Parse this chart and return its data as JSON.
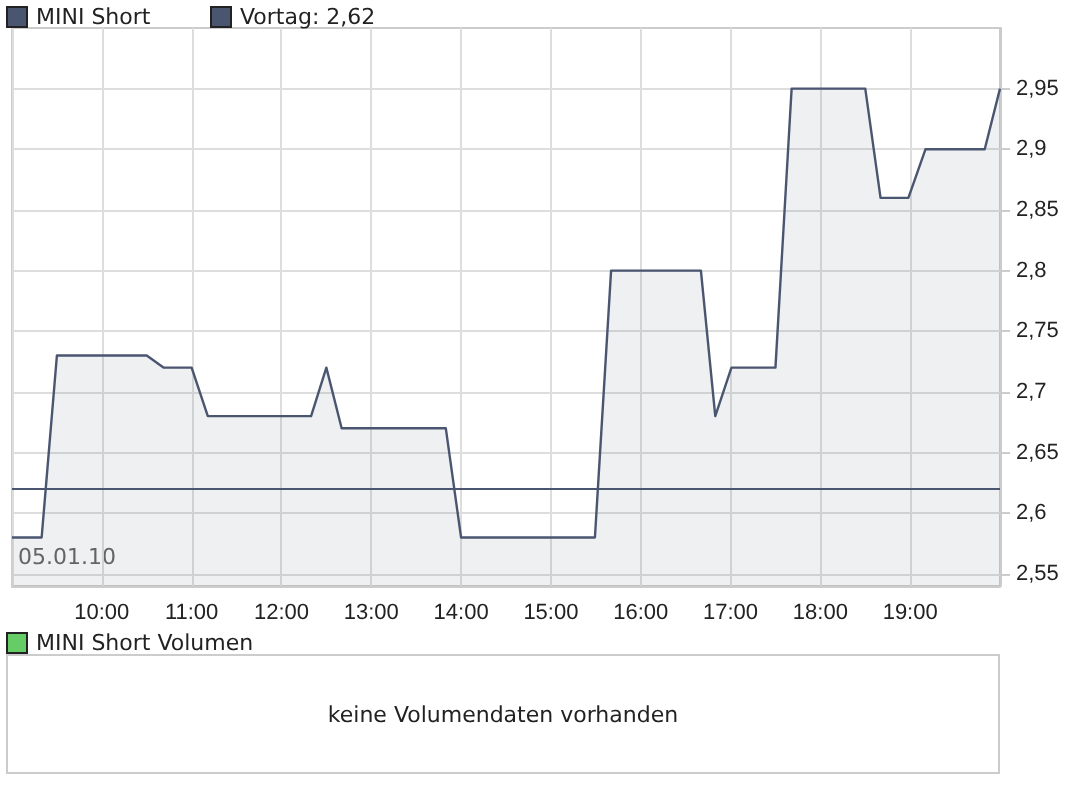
{
  "chart_data": [
    {
      "type": "area",
      "x": [
        9.0,
        9.33,
        9.5,
        10.5,
        10.69,
        11.0,
        11.18,
        12.33,
        12.5,
        12.67,
        13.83,
        14.0,
        15.49,
        15.67,
        16.67,
        16.83,
        17.01,
        17.5,
        17.68,
        18.5,
        18.67,
        18.98,
        19.17,
        19.83,
        20.0
      ],
      "series": [
        {
          "name": "MINI Short",
          "color": "#4a5570",
          "values": [
            2.58,
            2.58,
            2.73,
            2.73,
            2.72,
            2.72,
            2.68,
            2.68,
            2.72,
            2.67,
            2.67,
            2.58,
            2.58,
            2.8,
            2.8,
            2.68,
            2.72,
            2.72,
            2.95,
            2.95,
            2.86,
            2.86,
            2.9,
            2.9,
            2.95
          ]
        }
      ],
      "xlim": [
        9,
        20
      ],
      "xticks": [
        {
          "value": 10,
          "label": "10:00"
        },
        {
          "value": 11,
          "label": "11:00"
        },
        {
          "value": 12,
          "label": "12:00"
        },
        {
          "value": 13,
          "label": "13:00"
        },
        {
          "value": 14,
          "label": "14:00"
        },
        {
          "value": 15,
          "label": "15:00"
        },
        {
          "value": 16,
          "label": "16:00"
        },
        {
          "value": 17,
          "label": "17:00"
        },
        {
          "value": 18,
          "label": "18:00"
        },
        {
          "value": 19,
          "label": "19:00"
        }
      ],
      "ylim": [
        2.54,
        3.0
      ],
      "yticks": [
        {
          "value": 2.55,
          "label": "2,55"
        },
        {
          "value": 2.6,
          "label": "2,6"
        },
        {
          "value": 2.65,
          "label": "2,65"
        },
        {
          "value": 2.7,
          "label": "2,7"
        },
        {
          "value": 2.75,
          "label": "2,75"
        },
        {
          "value": 2.8,
          "label": "2,8"
        },
        {
          "value": 2.85,
          "label": "2,85"
        },
        {
          "value": 2.9,
          "label": "2,9"
        },
        {
          "value": 2.95,
          "label": "2,95"
        }
      ],
      "ref_lines": [
        {
          "axis": "y",
          "value": 2.62,
          "label": "Vortag: 2,62",
          "color": "#4a5570"
        }
      ],
      "annotations": [
        "05.01.10"
      ],
      "grid": true,
      "legend": "top left",
      "marker": "none"
    },
    {
      "type": "other",
      "title": "MINI Short Volumen",
      "annotations": [
        "keine Volumendaten vorhanden"
      ]
    }
  ]
}
